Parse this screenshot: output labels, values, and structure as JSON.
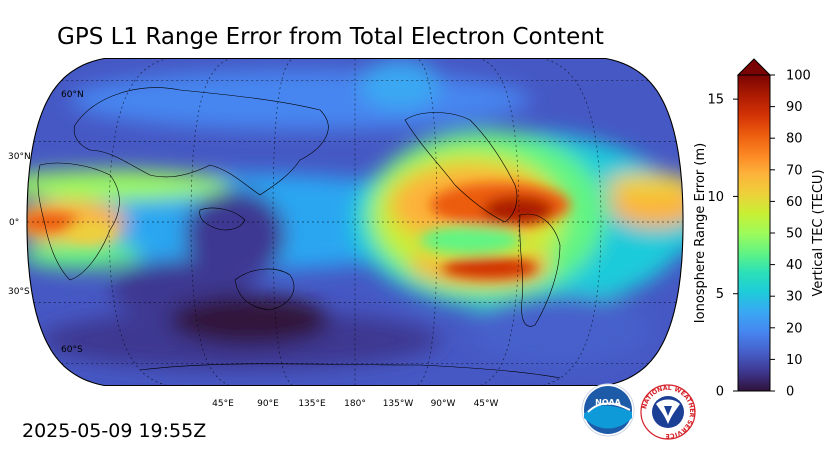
{
  "title": "GPS L1 Range Error from Total Electron Content",
  "timestamp": "2025-05-09 19:55Z",
  "map": {
    "lat_labels": [
      "60°N",
      "30°N",
      "0°",
      "30°S",
      "60°S"
    ],
    "lon_labels": [
      "45°E",
      "90°E",
      "135°E",
      "180°",
      "135°W",
      "90°W",
      "45°W"
    ]
  },
  "colorbar": {
    "left_axis_label": "Ionosphere Range Error (m)",
    "right_axis_label": "Vertical TEC (TECU)",
    "left_ticks": [
      "0",
      "5",
      "10",
      "15"
    ],
    "right_ticks": [
      "0",
      "10",
      "20",
      "30",
      "40",
      "50",
      "60",
      "70",
      "80",
      "90",
      "100"
    ],
    "tec_min": 0,
    "tec_max": 100,
    "range_error_max_m": 16.24,
    "extend": "max",
    "colors": [
      "#30123b",
      "#3e3891",
      "#4660cb",
      "#4686f0",
      "#3aa8f3",
      "#1ecbda",
      "#2be0b8",
      "#62f483",
      "#9efb5a",
      "#c8ef34",
      "#eed03a",
      "#fdb23b",
      "#fb8522",
      "#ec5c0e",
      "#d23105",
      "#ab1a01",
      "#7a0403"
    ]
  },
  "logos": {
    "noaa_text": "NOAA",
    "nws_text": "NATIONAL WEATHER SERVICE",
    "noaa_color": "#1d5ba8",
    "nws_color": "#d52027"
  }
}
